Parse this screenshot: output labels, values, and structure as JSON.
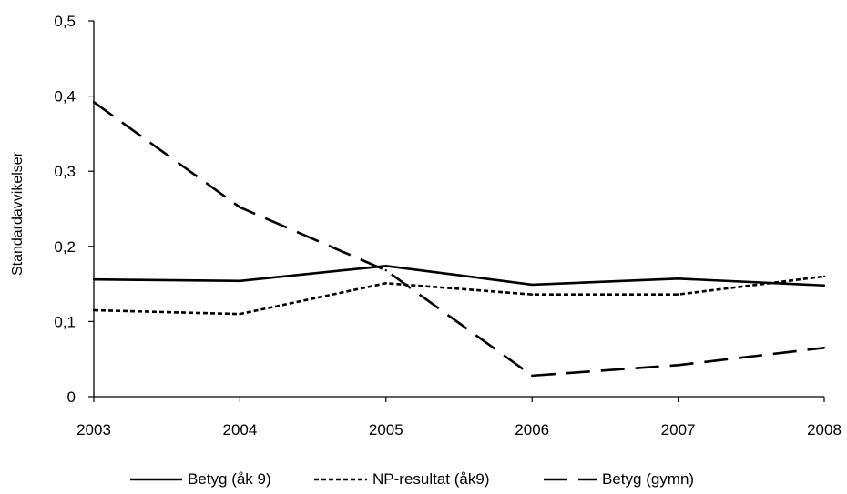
{
  "chart_data": {
    "type": "line",
    "title": "",
    "xlabel": "",
    "ylabel": "Standardavvikelser",
    "categories": [
      "2003",
      "2004",
      "2005",
      "2006",
      "2007",
      "2008"
    ],
    "ylim": [
      0,
      0.5
    ],
    "yticks": [
      0,
      0.1,
      0.2,
      0.3,
      0.4,
      0.5
    ],
    "ytick_labels": [
      "0",
      "0,1",
      "0,2",
      "0,3",
      "0,4",
      "0,5"
    ],
    "grid": false,
    "legend_position": "bottom",
    "series": [
      {
        "name": "Betyg (åk 9)",
        "style": "solid",
        "values": [
          0.156,
          0.154,
          0.174,
          0.149,
          0.157,
          0.148
        ]
      },
      {
        "name": "NP-resultat (åk9)",
        "style": "dotted",
        "values": [
          0.115,
          0.11,
          0.151,
          0.136,
          0.136,
          0.16
        ]
      },
      {
        "name": "Betyg (gymn)",
        "style": "dashed",
        "values": [
          0.392,
          0.252,
          0.168,
          0.028,
          0.042,
          0.065
        ]
      }
    ]
  }
}
